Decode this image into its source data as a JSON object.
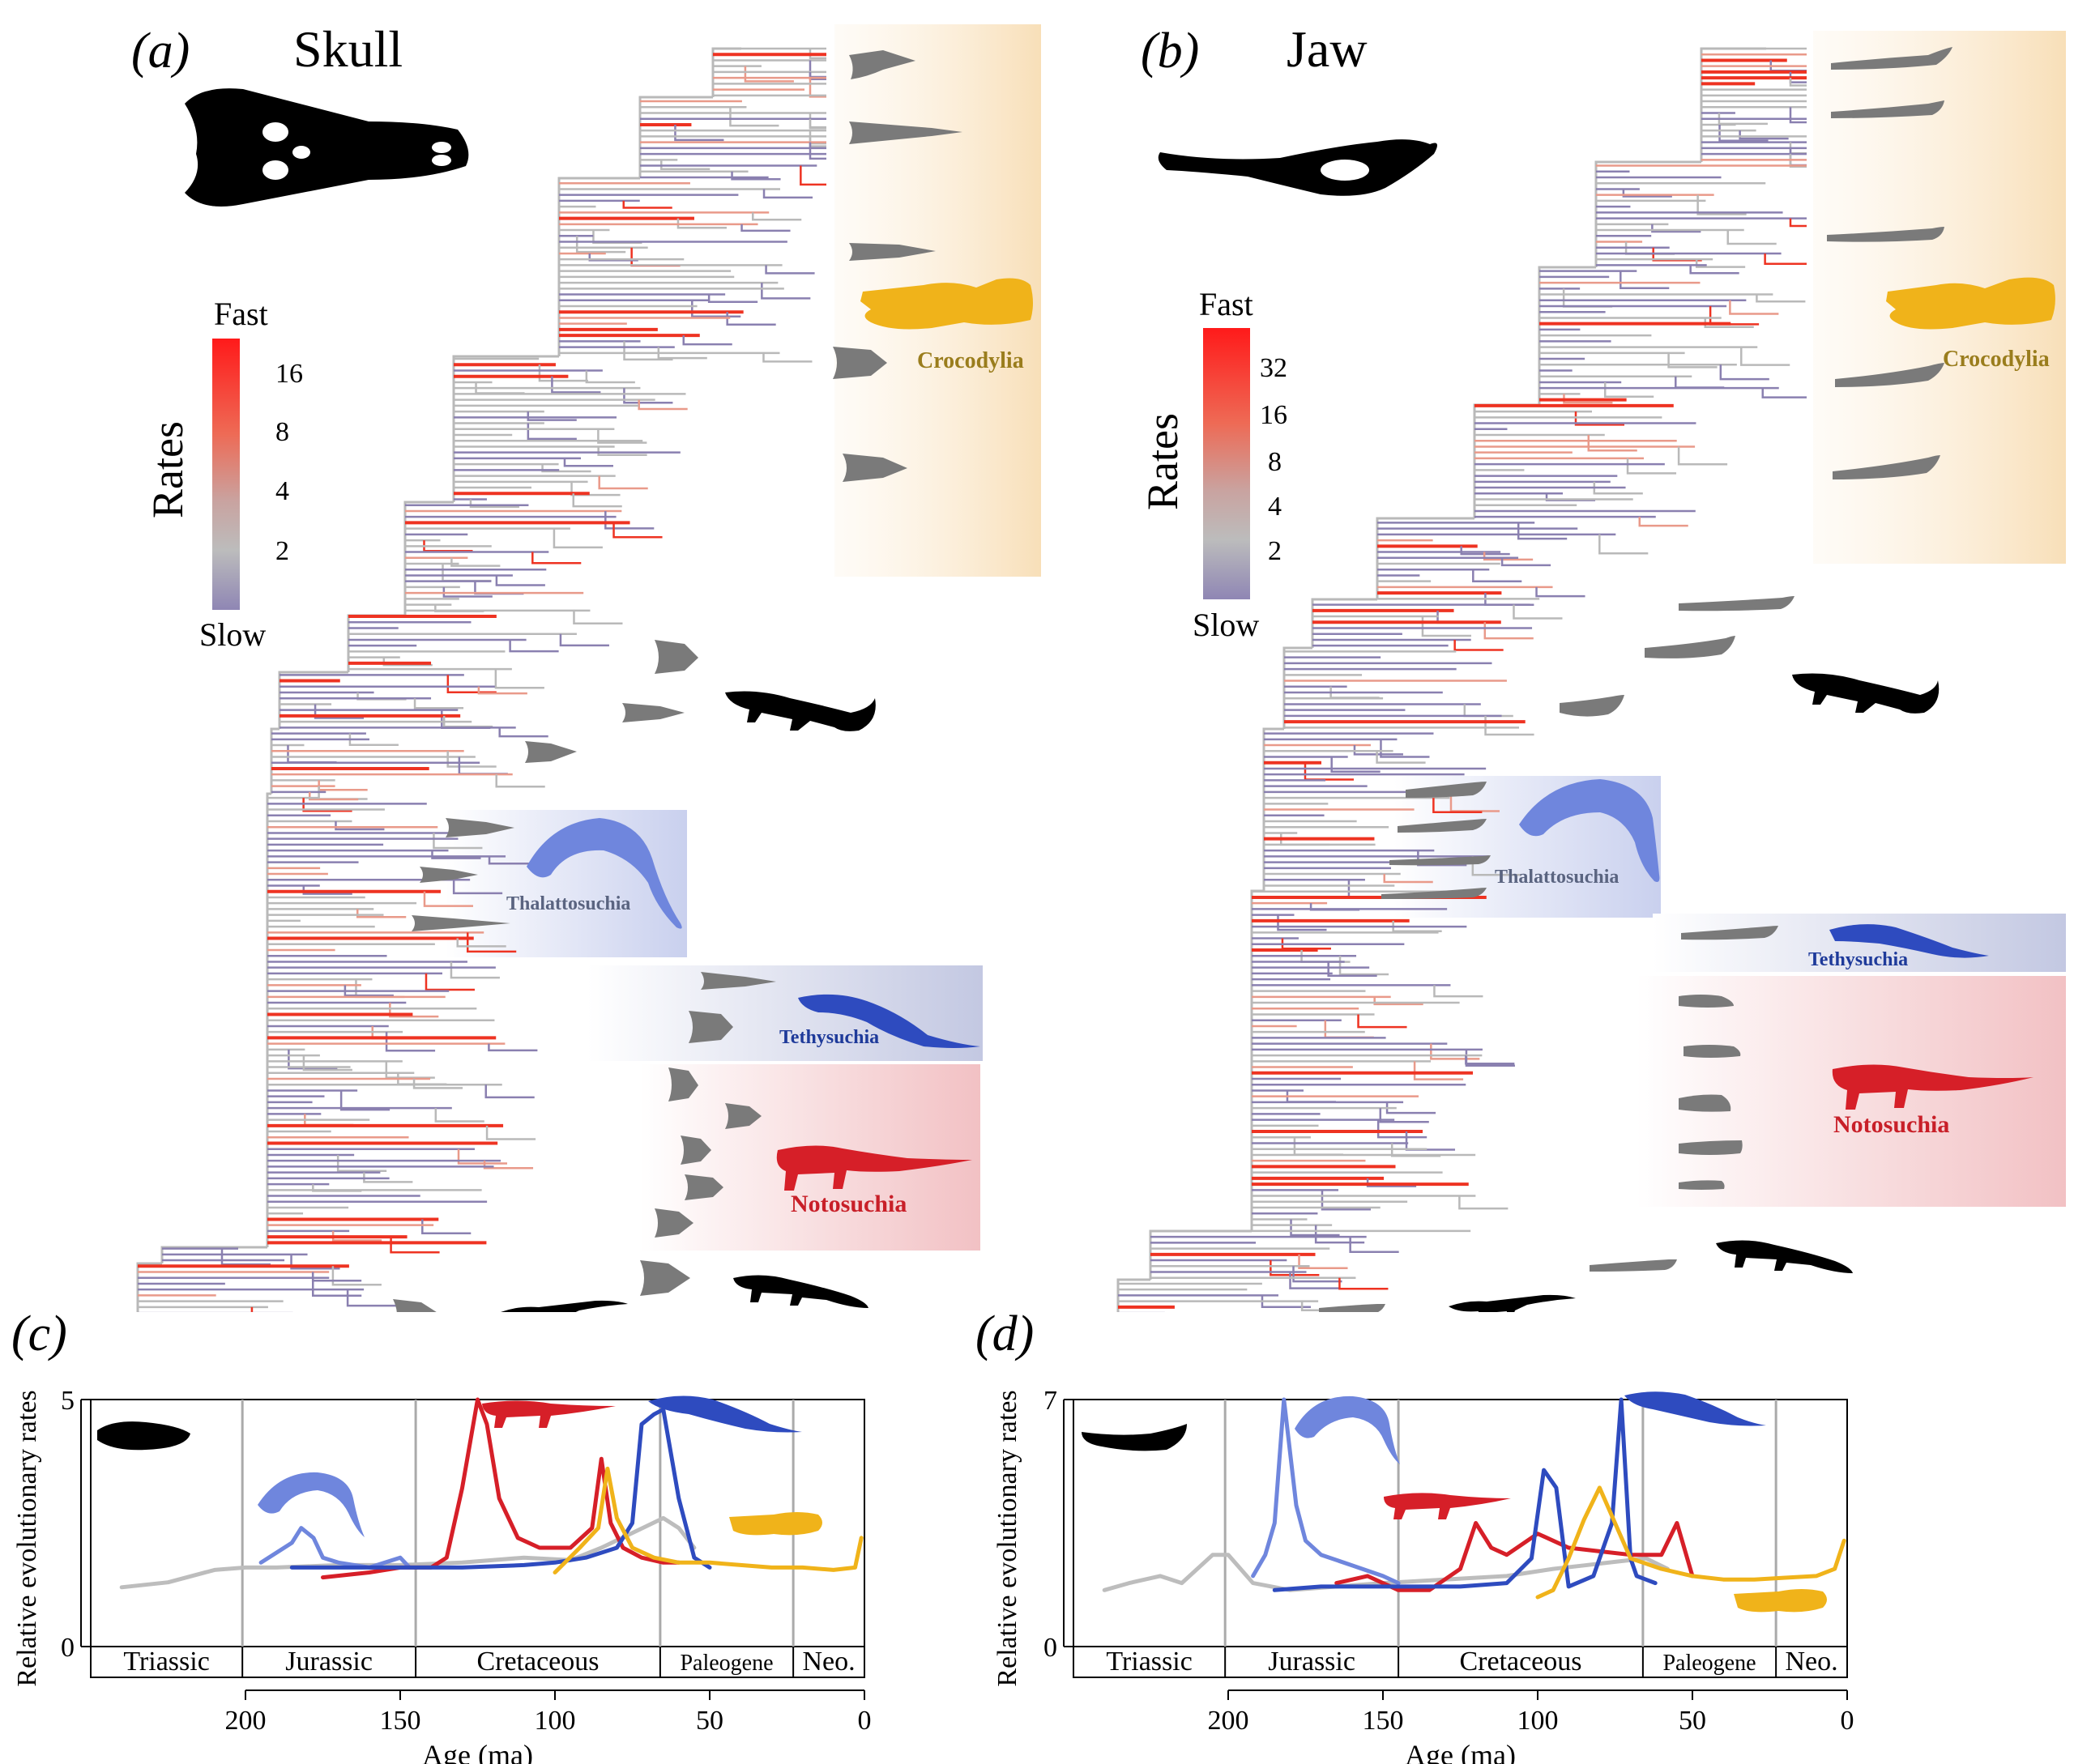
{
  "panels": {
    "a": {
      "letter": "(a)",
      "title": "Skull"
    },
    "b": {
      "letter": "(b)",
      "title": "Jaw"
    },
    "c": {
      "letter": "(c)"
    },
    "d": {
      "letter": "(d)"
    }
  },
  "legend_a": {
    "title": "Rates",
    "top": "Fast",
    "bottom": "Slow",
    "ticks": [
      "16",
      "8",
      "4",
      "2"
    ]
  },
  "legend_b": {
    "title": "Rates",
    "top": "Fast",
    "bottom": "Slow",
    "ticks": [
      "32",
      "16",
      "8",
      "4",
      "2"
    ]
  },
  "clades": {
    "crocodylia": "Crocodylia",
    "thalattosuchia": "Thalattosuchia",
    "tethysuchia": "Tethysuchia",
    "notosuchia": "Notosuchia"
  },
  "colors": {
    "crocodylia": "#f0b31a",
    "thalattosuchia": "#6f86dd",
    "tethysuchia": "#2e4bbf",
    "notosuchia": "#d61f28",
    "background": "#bdbdbd",
    "tree_slow": "#8a80b0",
    "tree_mid": "#b9b9b9",
    "tree_fast": "#ee3322"
  },
  "icons": [
    "skull-silhouette-icon",
    "jaw-silhouette-icon",
    "crocodile-silhouette-icon",
    "plesiosaur-like-thalattosuchian-icon",
    "notosuchian-silhouette-icon"
  ],
  "chart_data": [
    {
      "type": "line",
      "panel": "c",
      "ylabel": "Relative evolutionary rates",
      "xlabel": "Age (ma)",
      "ylim": [
        0,
        5
      ],
      "yticks": [
        "0",
        "5"
      ],
      "xlim": [
        250,
        0
      ],
      "xticks": [
        "200",
        "150",
        "100",
        "50",
        "0"
      ],
      "periods": [
        "Triassic",
        "Jurassic",
        "Cretaceous",
        "Paleogene",
        "Neo."
      ],
      "period_boundaries": [
        201,
        145,
        66,
        23
      ],
      "series": [
        {
          "color": "#bdbdbd",
          "x": [
            240,
            225,
            210,
            200,
            190,
            170,
            150,
            130,
            110,
            95,
            85,
            75,
            65,
            60,
            55
          ],
          "y": [
            1.2,
            1.3,
            1.55,
            1.6,
            1.6,
            1.65,
            1.65,
            1.7,
            1.8,
            1.75,
            2.0,
            2.3,
            2.6,
            2.4,
            2.0
          ]
        },
        {
          "color": "#6f86dd",
          "x": [
            195,
            190,
            185,
            182,
            178,
            175,
            170,
            160,
            150,
            147
          ],
          "y": [
            1.7,
            1.9,
            2.1,
            2.4,
            2.2,
            1.8,
            1.7,
            1.6,
            1.8,
            1.6
          ]
        },
        {
          "color": "#d61f28",
          "x": [
            175,
            160,
            150,
            140,
            135,
            130,
            125,
            122,
            118,
            112,
            105,
            95,
            88,
            85,
            82,
            78,
            72,
            65,
            60
          ],
          "y": [
            1.4,
            1.5,
            1.6,
            1.6,
            1.8,
            3.2,
            5.0,
            4.5,
            3.0,
            2.2,
            2.0,
            2.0,
            2.4,
            3.8,
            2.5,
            2.0,
            1.8,
            1.7,
            1.7
          ]
        },
        {
          "color": "#2e4bbf",
          "x": [
            185,
            170,
            150,
            130,
            110,
            100,
            90,
            80,
            75,
            72,
            68,
            65,
            60,
            55,
            50
          ],
          "y": [
            1.6,
            1.6,
            1.6,
            1.6,
            1.65,
            1.7,
            1.8,
            2.0,
            2.5,
            4.5,
            4.7,
            4.8,
            3.0,
            1.8,
            1.6
          ]
        },
        {
          "color": "#f0b31a",
          "x": [
            100,
            92,
            86,
            83,
            80,
            75,
            68,
            60,
            50,
            40,
            30,
            20,
            10,
            3,
            1
          ],
          "y": [
            1.5,
            2.0,
            2.4,
            3.6,
            2.6,
            2.0,
            1.8,
            1.7,
            1.7,
            1.65,
            1.6,
            1.6,
            1.55,
            1.6,
            2.2
          ]
        }
      ]
    },
    {
      "type": "line",
      "panel": "d",
      "ylabel": "Relative evolutionary rates",
      "xlabel": "Age (ma)",
      "ylim": [
        0,
        7
      ],
      "yticks": [
        "0",
        "7"
      ],
      "xlim": [
        250,
        0
      ],
      "xticks": [
        "200",
        "150",
        "100",
        "50",
        "0"
      ],
      "periods": [
        "Triassic",
        "Jurassic",
        "Cretaceous",
        "Paleogene",
        "Neo."
      ],
      "period_boundaries": [
        201,
        145,
        66,
        23
      ],
      "series": [
        {
          "color": "#bdbdbd",
          "x": [
            240,
            232,
            222,
            215,
            205,
            200,
            192,
            180,
            165,
            150,
            130,
            110,
            95,
            85,
            75,
            65,
            58
          ],
          "y": [
            1.6,
            1.8,
            2.0,
            1.8,
            2.6,
            2.6,
            1.8,
            1.6,
            1.7,
            1.8,
            1.9,
            2.0,
            2.2,
            2.3,
            2.4,
            2.5,
            2.2
          ]
        },
        {
          "color": "#6f86dd",
          "x": [
            192,
            188,
            185,
            182,
            180,
            178,
            175,
            170,
            160,
            150,
            145
          ],
          "y": [
            2.0,
            2.6,
            3.5,
            7.0,
            5.5,
            4.0,
            3.0,
            2.6,
            2.3,
            2.0,
            1.8
          ]
        },
        {
          "color": "#d61f28",
          "x": [
            165,
            155,
            145,
            135,
            125,
            120,
            115,
            110,
            100,
            90,
            80,
            70,
            60,
            55,
            50
          ],
          "y": [
            1.8,
            2.0,
            1.6,
            1.6,
            2.2,
            3.5,
            2.8,
            2.6,
            3.2,
            2.8,
            2.7,
            2.6,
            2.6,
            3.5,
            2.0
          ]
        },
        {
          "color": "#2e4bbf",
          "x": [
            185,
            170,
            155,
            140,
            125,
            110,
            102,
            98,
            94,
            90,
            82,
            76,
            73,
            70,
            68,
            62
          ],
          "y": [
            1.6,
            1.7,
            1.7,
            1.7,
            1.7,
            1.8,
            2.5,
            5.0,
            4.5,
            1.7,
            2.0,
            3.5,
            7.0,
            2.5,
            2.0,
            1.8
          ]
        },
        {
          "color": "#f0b31a",
          "x": [
            100,
            95,
            90,
            85,
            80,
            75,
            70,
            60,
            50,
            40,
            30,
            20,
            10,
            4,
            1
          ],
          "y": [
            1.4,
            1.6,
            2.5,
            3.6,
            4.5,
            3.5,
            2.5,
            2.2,
            2.0,
            1.9,
            1.9,
            1.95,
            2.0,
            2.2,
            3.0
          ]
        }
      ]
    }
  ]
}
